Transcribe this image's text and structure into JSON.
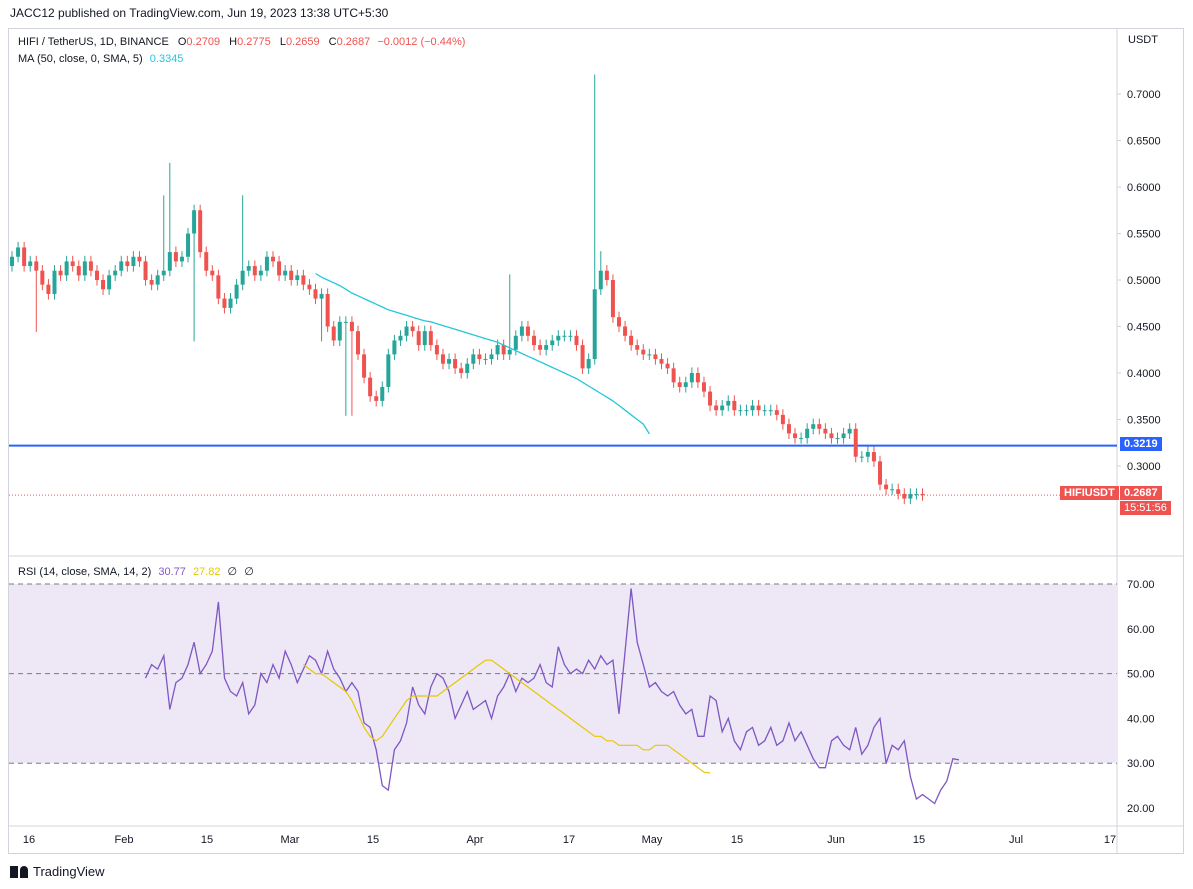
{
  "publisher": "JACC12 published on TradingView.com, Jun 19, 2023 13:38 UTC+5:30",
  "currency": "USDT",
  "legend": {
    "symbol": "HIFI / TetherUS, 1D, BINANCE",
    "o_label": "O",
    "o": "0.2709",
    "h_label": "H",
    "h": "0.2775",
    "l_label": "L",
    "l": "0.2659",
    "c_label": "C",
    "c": "0.2687",
    "change": "−0.0012 (−0.44%)",
    "ma_label": "MA (50, close, 0, SMA, 5)",
    "ma_value": "0.3345",
    "rsi_label": "RSI (14, close, SMA, 14, 2)",
    "rsi_value": "30.77",
    "rsi_sma": "27.82",
    "rsi_extra1": "∅",
    "rsi_extra2": "∅"
  },
  "tags": {
    "level": "0.3219",
    "symbol_tag": "HIFIUSDT",
    "last_price": "0.2687",
    "countdown": "15:51:56"
  },
  "colors": {
    "up": "#26a69a",
    "down": "#ef5350",
    "ma": "#26c6da",
    "level_line": "#2962ff",
    "rsi": "#7e57c2",
    "rsi_sma": "#e6c800",
    "rsi_band": "#ede7f6"
  },
  "footer": "TradingView",
  "chart_data": [
    {
      "type": "candlestick",
      "title": "HIFI / TetherUS, 1D, BINANCE",
      "y_ticks": [
        "0.7000",
        "0.6500",
        "0.6000",
        "0.5500",
        "0.5000",
        "0.4500",
        "0.4000",
        "0.3500",
        "0.3000"
      ],
      "ylim": [
        0.23,
        0.76
      ],
      "x_ticks": [
        "16",
        "Feb",
        "15",
        "Mar",
        "15",
        "Apr",
        "17",
        "May",
        "15",
        "Jun",
        "15",
        "Jul",
        "17"
      ],
      "horizontal_line": 0.3219,
      "last_price": 0.2687,
      "close": [
        0.525,
        0.535,
        0.515,
        0.52,
        0.51,
        0.495,
        0.485,
        0.51,
        0.505,
        0.52,
        0.515,
        0.505,
        0.52,
        0.51,
        0.5,
        0.49,
        0.505,
        0.51,
        0.52,
        0.515,
        0.525,
        0.52,
        0.5,
        0.495,
        0.505,
        0.51,
        0.53,
        0.52,
        0.525,
        0.55,
        0.575,
        0.53,
        0.51,
        0.505,
        0.48,
        0.47,
        0.48,
        0.495,
        0.51,
        0.515,
        0.505,
        0.51,
        0.525,
        0.52,
        0.505,
        0.51,
        0.5,
        0.505,
        0.495,
        0.49,
        0.48,
        0.485,
        0.45,
        0.435,
        0.455,
        0.455,
        0.445,
        0.42,
        0.395,
        0.375,
        0.37,
        0.385,
        0.42,
        0.435,
        0.44,
        0.45,
        0.445,
        0.43,
        0.445,
        0.43,
        0.42,
        0.41,
        0.415,
        0.405,
        0.4,
        0.41,
        0.42,
        0.415,
        0.415,
        0.42,
        0.43,
        0.42,
        0.425,
        0.44,
        0.45,
        0.44,
        0.43,
        0.425,
        0.43,
        0.435,
        0.44,
        0.44,
        0.44,
        0.43,
        0.405,
        0.415,
        0.49,
        0.51,
        0.5,
        0.46,
        0.45,
        0.44,
        0.43,
        0.425,
        0.42,
        0.42,
        0.415,
        0.41,
        0.405,
        0.39,
        0.385,
        0.39,
        0.4,
        0.39,
        0.38,
        0.365,
        0.36,
        0.365,
        0.37,
        0.36,
        0.36,
        0.36,
        0.365,
        0.36,
        0.36,
        0.36,
        0.355,
        0.345,
        0.335,
        0.33,
        0.33,
        0.34,
        0.345,
        0.34,
        0.335,
        0.33,
        0.33,
        0.335,
        0.34,
        0.31,
        0.31,
        0.315,
        0.305,
        0.28,
        0.275,
        0.275,
        0.27,
        0.265,
        0.27,
        0.27,
        0.2687
      ],
      "ma50_start_index": 50,
      "ma50": [
        0.507,
        0.503,
        0.5,
        0.497,
        0.494,
        0.49,
        0.486,
        0.483,
        0.48,
        0.477,
        0.474,
        0.471,
        0.468,
        0.466,
        0.464,
        0.462,
        0.46,
        0.458,
        0.456,
        0.455,
        0.453,
        0.451,
        0.449,
        0.447,
        0.445,
        0.443,
        0.441,
        0.439,
        0.437,
        0.435,
        0.433,
        0.43,
        0.427,
        0.424,
        0.421,
        0.418,
        0.415,
        0.412,
        0.409,
        0.406,
        0.403,
        0.4,
        0.397,
        0.394,
        0.39,
        0.386,
        0.382,
        0.378,
        0.374,
        0.37,
        0.365,
        0.36,
        0.355,
        0.35,
        0.345,
        0.3345
      ]
    },
    {
      "type": "line",
      "title": "RSI (14, close, SMA, 14, 2)",
      "y_ticks": [
        "70.00",
        "60.00",
        "50.00",
        "40.00",
        "30.00",
        "20.00"
      ],
      "ylim": [
        17,
        77
      ],
      "bands": [
        30,
        50,
        70
      ],
      "rsi_start_index": 22,
      "rsi": [
        49,
        52,
        51,
        54,
        42,
        48,
        49,
        52,
        57,
        50,
        52,
        55,
        66,
        49,
        46,
        45,
        48,
        41,
        43,
        50,
        48,
        52,
        49,
        55,
        52,
        48,
        51,
        54,
        53,
        50,
        55,
        51,
        49,
        46,
        48,
        46,
        39,
        38,
        33,
        25,
        24,
        33,
        35,
        39,
        47,
        43,
        41,
        47,
        50,
        49,
        46,
        40,
        43,
        46,
        42,
        43,
        44,
        40,
        45,
        47,
        50,
        46,
        49,
        48,
        49,
        52,
        48,
        47,
        56,
        52,
        50,
        51,
        50,
        53,
        51,
        54,
        52,
        53,
        41,
        55,
        69,
        57,
        52,
        47,
        48,
        46,
        45,
        46,
        43,
        41,
        42,
        36,
        36,
        45,
        44,
        37,
        40,
        35,
        33,
        37,
        38,
        34,
        35,
        38,
        34,
        35,
        39,
        35,
        37,
        34,
        31,
        29,
        29,
        35,
        36,
        34,
        33,
        38,
        32,
        34,
        38,
        40,
        30,
        34,
        33,
        35,
        27,
        22,
        23,
        22,
        21,
        24,
        26,
        31,
        30.77
      ],
      "sma_start_index": 48,
      "rsi_sma": [
        52,
        51,
        50,
        50,
        49,
        48,
        47,
        46,
        44,
        41,
        38,
        36,
        35,
        36,
        38,
        40,
        42,
        44,
        45,
        45,
        45,
        45,
        45,
        46,
        47,
        48,
        49,
        50,
        51,
        52,
        53,
        53,
        52,
        51,
        50,
        49,
        48,
        47,
        46,
        45,
        44,
        43,
        42,
        41,
        40,
        39,
        38,
        37,
        36,
        36,
        35,
        35,
        34,
        34,
        34,
        34,
        33,
        33,
        34,
        34,
        34,
        33,
        32,
        31,
        30,
        29,
        28,
        27.82
      ]
    }
  ]
}
